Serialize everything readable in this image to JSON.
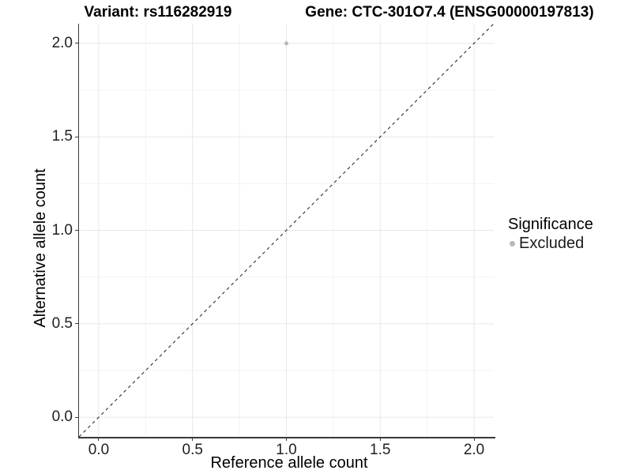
{
  "header": {
    "variant_title": "Variant: rs116282919",
    "gene_title": "Gene: CTC-301O7.4 (ENSG00000197813)"
  },
  "legend": {
    "title": "Significance",
    "items": [
      {
        "label": "Excluded",
        "marker": "circle-icon",
        "color": "#b8b8b8"
      }
    ]
  },
  "chart_data": {
    "type": "scatter",
    "title": "Variant: rs116282919 — Gene: CTC-301O7.4 (ENSG00000197813)",
    "xlabel": "Reference allele count",
    "ylabel": "Alternative allele count",
    "xlim": [
      -0.105,
      2.105
    ],
    "ylim": [
      -0.105,
      2.105
    ],
    "x_ticks": {
      "values": [
        0,
        0.5,
        1,
        1.5,
        2
      ],
      "labels": [
        "0.0",
        "0.5",
        "1.0",
        "1.5",
        "2.0"
      ]
    },
    "y_ticks": {
      "values": [
        0,
        0.5,
        1,
        1.5,
        2
      ],
      "labels": [
        "0.0",
        "0.5",
        "1.0",
        "1.5",
        "2.0"
      ]
    },
    "x_minor_ticks": [
      0.25,
      0.75,
      1.25,
      1.75
    ],
    "y_minor_ticks": [
      0.25,
      0.75,
      1.25,
      1.75
    ],
    "grid": "major-and-minor",
    "legend_position": "right",
    "series": [
      {
        "name": "Excluded",
        "color": "#b8b8b8",
        "marker_size": 5,
        "points": [
          [
            1.0,
            2.0
          ]
        ]
      }
    ],
    "reference_line": {
      "kind": "y=x",
      "linetype": "dashed",
      "color": "#1a1a1a"
    },
    "colors": {
      "grid_major": "#e7e7e7",
      "grid_minor": "#f3f3f3",
      "axis": "#3a3a3a",
      "tick_text": "#1f1f1f"
    }
  }
}
